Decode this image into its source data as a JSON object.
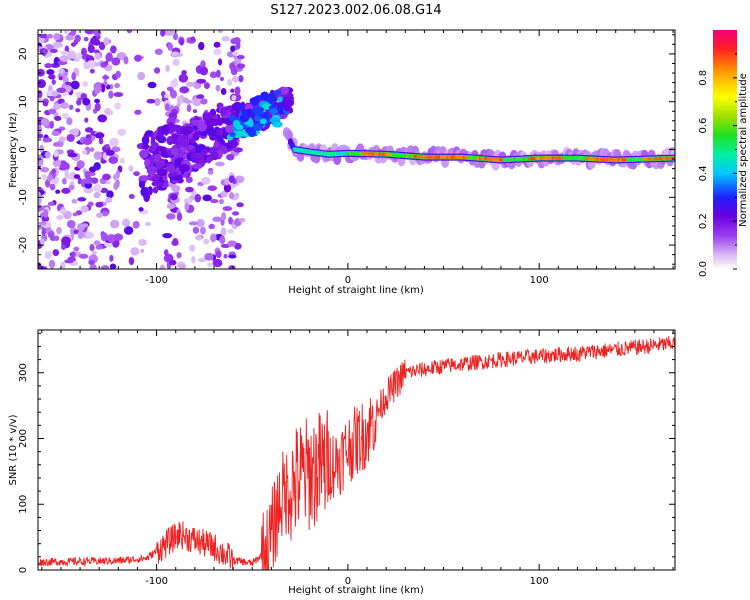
{
  "title": "S127.2023.002.06.08.G14",
  "chart_data": [
    {
      "type": "heatmap",
      "xlabel": "Height of straight line (km)",
      "ylabel": "Frequency (Hz)",
      "xlim": [
        -162,
        171
      ],
      "ylim": [
        -25,
        25
      ],
      "x_ticks": [
        -100,
        0,
        100
      ],
      "y_ticks": [
        -20,
        -10,
        0,
        10,
        20
      ],
      "colorbar": {
        "label": "Normalized spectral amplitude",
        "range": [
          0,
          1
        ],
        "ticks": [
          "0.0",
          "0.2",
          "0.4",
          "0.6",
          "0.8"
        ],
        "colors": [
          "#ffffff",
          "#d9b8f5",
          "#9a3cf0",
          "#6a00e0",
          "#2020ff",
          "#00c8ff",
          "#00f0a0",
          "#20e020",
          "#a0e000",
          "#ffff00",
          "#ffa000",
          "#ff2020",
          "#f00080"
        ]
      },
      "ridge": {
        "description_points_x": [
          -50,
          -40,
          -33,
          -28,
          -20,
          -10,
          0,
          20,
          40,
          60,
          80,
          100,
          120,
          140,
          171
        ],
        "description_points_y": [
          5,
          9,
          4,
          0,
          -0.5,
          -1,
          -0.8,
          -1,
          -1.6,
          -1.6,
          -2.2,
          -1.8,
          -1.8,
          -2.2,
          -1.8
        ]
      }
    },
    {
      "type": "line",
      "xlabel": "Height of straight line (km)",
      "ylabel": "SNR (10 * v/v)",
      "xlim": [
        -162,
        171
      ],
      "ylim": [
        0,
        365
      ],
      "x_ticks": [
        -100,
        0,
        100
      ],
      "y_ticks": [
        0,
        100,
        200,
        300
      ],
      "color": "#ee2222",
      "series_shape": {
        "x": [
          -162,
          -120,
          -105,
          -95,
          -88,
          -80,
          -70,
          -60,
          -50,
          -42,
          -35,
          -25,
          -15,
          -5,
          0,
          10,
          20,
          30,
          50,
          80,
          100,
          120,
          140,
          171
        ],
        "y": [
          12,
          14,
          18,
          40,
          55,
          45,
          35,
          15,
          10,
          30,
          110,
          140,
          155,
          165,
          185,
          210,
          265,
          300,
          310,
          320,
          325,
          330,
          335,
          345
        ]
      }
    }
  ]
}
